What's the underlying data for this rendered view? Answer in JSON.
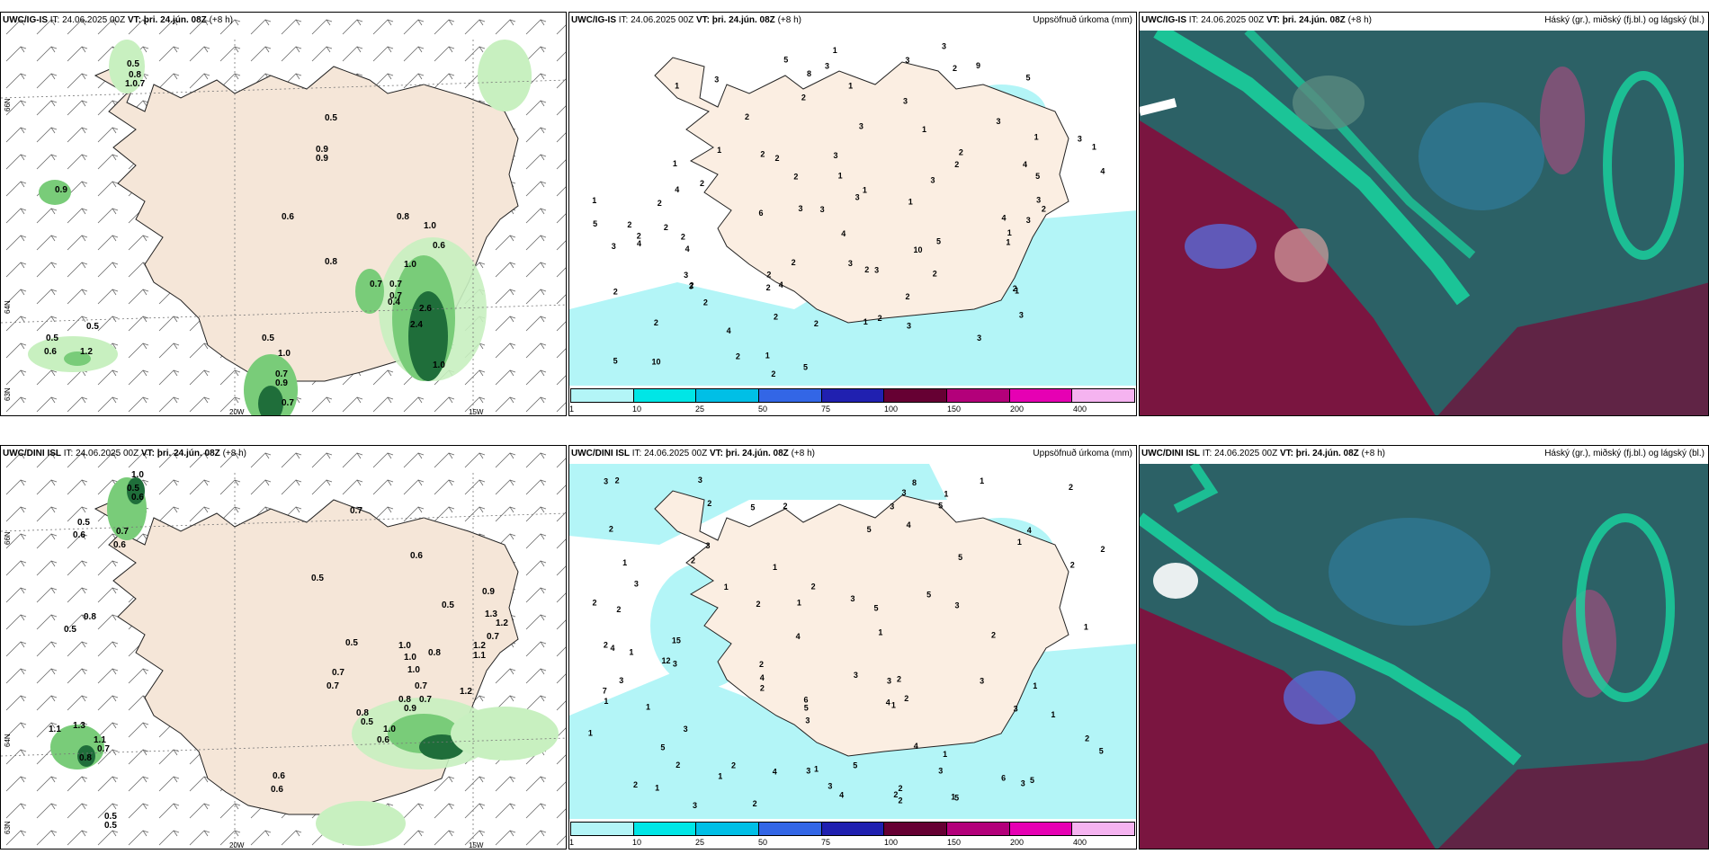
{
  "panels": {
    "tl": {
      "model": "UWC/IG-IS",
      "it_label": "IT:",
      "it_value": "24.06.2025 00Z",
      "vt_label": "VT:",
      "vt_value": "þri. 24.jún. 08Z",
      "lead": "(+8 h)",
      "right": ""
    },
    "tm": {
      "model": "UWC/IG-IS",
      "it_label": "IT:",
      "it_value": "24.06.2025 00Z",
      "vt_label": "VT:",
      "vt_value": "þri. 24.jún. 08Z",
      "lead": "(+8 h)",
      "right": "Uppsöfnuð úrkoma (mm)"
    },
    "tr": {
      "model": "UWC/IG-IS",
      "it_label": "IT:",
      "it_value": "24.06.2025 00Z",
      "vt_label": "VT:",
      "vt_value": "þri. 24.jún. 08Z",
      "lead": "(+8 h)",
      "right": "Háský (gr.), miðský (fj.bl.) og lágský (bl.)"
    },
    "bl": {
      "model": "UWC/DINI ISL",
      "it_label": "IT:",
      "it_value": "24.06.2025 00Z",
      "vt_label": "VT:",
      "vt_value": "þri. 24.jún. 08Z",
      "lead": "(+8 h)",
      "right": ""
    },
    "bm": {
      "model": "UWC/DINI ISL",
      "it_label": "IT:",
      "it_value": "24.06.2025 00Z",
      "vt_label": "VT:",
      "vt_value": "þri. 24.jún. 08Z",
      "lead": "(+8 h)",
      "right": "Uppsöfnuð úrkoma (mm)"
    },
    "br": {
      "model": "UWC/DINI ISL",
      "it_label": "IT:",
      "it_value": "24.06.2025 00Z",
      "vt_label": "VT:",
      "vt_value": "þri. 24.jún. 08Z",
      "lead": "(+8 h)",
      "right": "Háský (gr.), miðský (fj.bl.) og lágský (bl.)"
    }
  },
  "axes": {
    "lon_20": "20W",
    "lon_15": "15W",
    "lat_66": "66N",
    "lat_64": "64N",
    "lat_63": "63N"
  },
  "colorbar": {
    "labels": [
      "1",
      "10",
      "25",
      "50",
      "75",
      "100",
      "150",
      "200",
      "400"
    ],
    "colors": [
      "#b3f5f7",
      "#00e6e6",
      "#00bfe6",
      "#3366e6",
      "#2020b0",
      "#660033",
      "#b3007a",
      "#e600b3",
      "#f5b3f0"
    ]
  },
  "colors": {
    "land": "#f5e6d8",
    "precip": "#b3f5f7",
    "green_light": "#c8f0c0",
    "green_mid": "#79cc79",
    "green_dark": "#1f6e3a",
    "cloud_bg": "#2c6166",
    "cloud_low": "#7a1540",
    "cloud_mid": "#5a6ad6",
    "cloud_high": "#19d6a0"
  },
  "annotations": {
    "tl": [
      "0.5",
      "0.8",
      "1.0.7",
      "0.5",
      "0.9",
      "0.9",
      "0.9",
      "0.6",
      "0.8",
      "1.0",
      "0.6",
      "0.8",
      "1.0",
      "0.7",
      "0.7",
      "0.7",
      "0.4",
      "2.6",
      "2.4",
      "1.0",
      "0.5",
      "0.5",
      "0.6",
      "1.2",
      "0.5",
      "1.0",
      "0.7",
      "0.9",
      "0.7"
    ],
    "tm": [
      "2",
      "9",
      "3",
      "3",
      "2",
      "2",
      "4",
      "2",
      "1",
      "2",
      "2",
      "1",
      "2",
      "3",
      "5",
      "5",
      "3",
      "1",
      "3",
      "1",
      "3",
      "3",
      "2",
      "1",
      "1",
      "2",
      "2",
      "3",
      "3",
      "5",
      "1",
      "2",
      "2",
      "3",
      "1",
      "4",
      "3",
      "1",
      "1",
      "1",
      "1",
      "1",
      "2",
      "2",
      "5",
      "4",
      "10",
      "1",
      "2",
      "2",
      "2",
      "2",
      "3",
      "5",
      "6",
      "3",
      "2",
      "2",
      "1",
      "2",
      "5",
      "3",
      "3",
      "3",
      "2",
      "2",
      "3",
      "3",
      "3",
      "3",
      "1",
      "4",
      "2",
      "2",
      "2",
      "4",
      "3",
      "3",
      "2",
      "5",
      "3",
      "2",
      "4",
      "1",
      "2",
      "4",
      "4",
      "2",
      "4",
      "2",
      "10",
      "8"
    ],
    "bl": [
      "1.0",
      "0.5",
      "0.6",
      "0.5",
      "0.6",
      "0.7",
      "0.6",
      "0.7",
      "0.6",
      "0.5",
      "0.5",
      "0.9",
      "0.8",
      "0.5",
      "1.3",
      "1.2",
      "0.7",
      "1.2",
      "1.1",
      "1.0",
      "0.8",
      "1.0",
      "1.0",
      "0.5",
      "0.7",
      "0.7",
      "0.7",
      "0.7",
      "0.8",
      "0.8",
      "0.9",
      "1.2",
      "1.0",
      "0.6",
      "0.5",
      "1.1",
      "1.3",
      "1.1",
      "0.7",
      "0.8",
      "0.6",
      "0.6",
      "0.5",
      "0.5"
    ],
    "bm": [
      "2",
      "2",
      "2",
      "1",
      "2",
      "1",
      "2",
      "2",
      "2",
      "3",
      "2",
      "2",
      "1",
      "6",
      "3",
      "2",
      "5",
      "1",
      "2",
      "2",
      "7",
      "3",
      "5",
      "1",
      "3",
      "8",
      "3",
      "4",
      "12",
      "5",
      "1",
      "2",
      "2",
      "2",
      "3",
      "3",
      "5",
      "1",
      "3",
      "3",
      "15",
      "5",
      "2",
      "5",
      "1",
      "1",
      "6",
      "2",
      "1",
      "2",
      "4",
      "1",
      "2",
      "2",
      "3",
      "4",
      "2",
      "1",
      "2",
      "3",
      "3",
      "1",
      "4",
      "5",
      "2",
      "1",
      "2",
      "3",
      "5",
      "1",
      "2",
      "4",
      "3",
      "4",
      "4",
      "5",
      "5",
      "4",
      "1",
      "5",
      "3",
      "1",
      "3",
      "4",
      "3",
      "1",
      "1",
      "1",
      "3",
      "1",
      "5",
      "2",
      "3",
      "3",
      "3"
    ]
  }
}
